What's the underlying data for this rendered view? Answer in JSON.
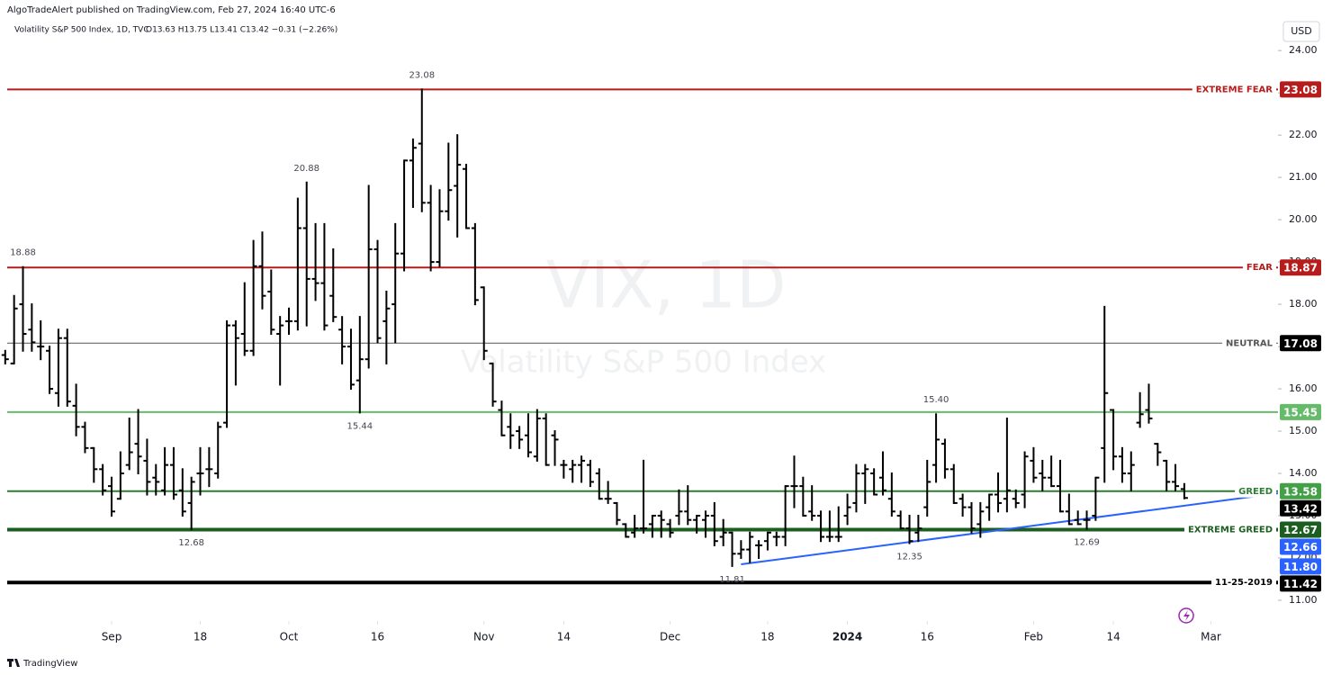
{
  "header": {
    "publisher": "AlgoTradeAlert published on TradingView.com, Feb 27, 2024 16:40 UTC-6",
    "symbol": "Volatility S&P 500 Index, 1D, TVC",
    "ohlc": "O13.63 H13.75 L13.41 C13.42 −0.31 (−2.26%)",
    "currency": "USD"
  },
  "watermark": {
    "symbol": "VIX, 1D",
    "name": "Volatility S&P 500 Index"
  },
  "footer": "TradingView",
  "chart_data": {
    "type": "ohlc",
    "color": "#000000",
    "xlim": [
      -0.59,
      143.57
    ],
    "xticks": [
      {
        "value": 12,
        "label": "Sep"
      },
      {
        "value": 22,
        "label": "18"
      },
      {
        "value": 32,
        "label": "Oct"
      },
      {
        "value": 42,
        "label": "16"
      },
      {
        "value": 54,
        "label": "Nov"
      },
      {
        "value": 63,
        "label": "14"
      },
      {
        "value": 75,
        "label": "Dec"
      },
      {
        "value": 86,
        "label": "18"
      },
      {
        "value": 95,
        "label": "2024"
      },
      {
        "value": 104,
        "label": "16"
      },
      {
        "value": 116,
        "label": "Feb"
      },
      {
        "value": 125,
        "label": "14"
      },
      {
        "value": 136,
        "label": "Mar"
      }
    ],
    "ylim": [
      10.51,
      24.77
    ],
    "yticks": [
      {
        "value": 11,
        "label": "11.00"
      },
      {
        "value": 12,
        "label": "12.00"
      },
      {
        "value": 13,
        "label": "13.00"
      },
      {
        "value": 14,
        "label": "14.00"
      },
      {
        "value": 15,
        "label": "15.00"
      },
      {
        "value": 16,
        "label": "16.00"
      },
      {
        "value": 17,
        "label": "17.00"
      },
      {
        "value": 18,
        "label": "18.00"
      },
      {
        "value": 19,
        "label": "19.00"
      },
      {
        "value": 20,
        "label": "20.00"
      },
      {
        "value": 21,
        "label": "21.00"
      },
      {
        "value": 22,
        "label": "22.00"
      },
      {
        "value": 23,
        "label": "23.00"
      },
      {
        "value": 24,
        "label": "24.00"
      }
    ],
    "grid": false,
    "open": [
      16.8,
      16.6,
      18.0,
      17.4,
      17.0,
      16.9,
      15.9,
      17.2,
      15.6,
      15.1,
      14.6,
      14.1,
      13.7,
      13.4,
      14.2,
      14.7,
      14.3,
      13.9,
      13.6,
      14.2,
      13.6,
      13.3,
      14.0,
      14.1,
      14.0,
      15.2,
      17.5,
      17.3,
      16.9,
      18.9,
      18.3,
      17.3,
      17.6,
      17.6,
      19.8,
      18.6,
      18.5,
      18.2,
      17.4,
      17.0,
      16.2,
      16.7,
      19.3,
      17.6,
      18.0,
      19.2,
      21.4,
      21.8,
      20.4,
      19.0,
      20.2,
      20.8,
      21.2,
      19.8,
      18.4,
      16.6,
      15.5,
      15.1,
      15.0,
      14.9,
      14.4,
      15.3,
      14.9,
      14.2,
      14.1,
      14.2,
      14.2,
      14.0,
      13.4,
      13.3,
      12.8,
      12.6,
      12.7,
      12.8,
      13.0,
      12.8,
      13.0,
      13.1,
      12.9,
      12.9,
      13.0,
      12.5,
      12.6,
      12.1,
      12.2,
      12.3,
      12.4,
      12.5,
      12.5,
      13.7,
      13.7,
      13.1,
      13.0,
      12.5,
      12.5,
      13.0,
      13.3,
      14.0,
      14.0,
      13.9,
      13.4,
      13.0,
      12.7,
      12.6,
      13.2,
      14.2,
      14.7,
      14.1,
      13.4,
      13.2,
      12.8,
      13.2,
      13.5,
      13.4,
      13.4,
      13.5,
      14.3,
      14.0,
      13.9,
      13.7,
      13.1,
      12.9,
      12.9,
      13.0,
      14.6,
      15.5,
      14.4,
      14.0,
      15.2,
      15.5,
      14.7,
      14.3,
      13.8,
      13.63
    ],
    "high": [
      16.9,
      18.2,
      18.88,
      18.0,
      17.6,
      17.0,
      17.4,
      17.4,
      16.1,
      15.2,
      14.6,
      14.2,
      13.9,
      14.5,
      15.3,
      15.5,
      14.8,
      14.2,
      14.6,
      14.6,
      14.1,
      13.9,
      14.6,
      14.6,
      15.2,
      17.6,
      17.6,
      18.5,
      19.5,
      19.7,
      18.8,
      17.7,
      17.9,
      20.5,
      20.88,
      19.9,
      19.9,
      19.3,
      17.7,
      17.4,
      17.7,
      20.8,
      19.5,
      18.3,
      19.9,
      21.4,
      21.9,
      23.08,
      20.8,
      20.7,
      21.8,
      22.0,
      21.3,
      19.9,
      18.4,
      16.6,
      15.7,
      15.4,
      15.1,
      15.4,
      15.5,
      15.4,
      15.0,
      14.3,
      14.3,
      14.4,
      14.3,
      14.1,
      13.8,
      13.3,
      12.8,
      13.0,
      14.3,
      13.0,
      13.1,
      12.9,
      13.6,
      13.7,
      13.0,
      13.1,
      13.3,
      12.9,
      12.6,
      12.4,
      12.6,
      12.4,
      12.6,
      12.6,
      13.7,
      14.4,
      13.9,
      13.7,
      13.1,
      13.1,
      13.2,
      13.5,
      14.2,
      14.2,
      14.1,
      14.5,
      14.0,
      13.1,
      13.0,
      13.0,
      14.3,
      15.4,
      14.8,
      14.2,
      13.5,
      13.3,
      13.3,
      13.5,
      14.0,
      15.3,
      13.6,
      14.5,
      14.6,
      14.3,
      14.4,
      14.3,
      13.5,
      13.1,
      13.1,
      13.9,
      17.94,
      15.5,
      14.6,
      14.5,
      15.9,
      16.1,
      14.7,
      14.3,
      14.2,
      13.75
    ],
    "low": [
      16.6,
      16.6,
      16.9,
      16.9,
      16.7,
      15.9,
      15.6,
      15.6,
      14.9,
      14.5,
      13.8,
      13.5,
      13.0,
      13.4,
      14.1,
      14.0,
      13.5,
      13.5,
      13.5,
      13.4,
      13.0,
      12.68,
      13.5,
      13.7,
      13.9,
      15.1,
      16.1,
      16.8,
      16.8,
      17.9,
      17.3,
      16.1,
      17.3,
      17.4,
      17.5,
      18.1,
      17.4,
      17.6,
      16.6,
      16.0,
      15.44,
      16.5,
      17.1,
      16.6,
      17.1,
      18.8,
      20.3,
      20.2,
      18.8,
      18.9,
      20.0,
      19.6,
      19.8,
      18.0,
      16.7,
      15.6,
      14.9,
      14.6,
      14.6,
      14.4,
      14.3,
      14.2,
      14.2,
      13.9,
      13.8,
      13.8,
      13.7,
      13.4,
      13.3,
      12.8,
      12.5,
      12.5,
      12.6,
      12.5,
      12.5,
      12.5,
      12.8,
      12.8,
      12.6,
      12.5,
      12.3,
      12.3,
      11.81,
      12.0,
      11.9,
      12.0,
      12.2,
      12.3,
      12.3,
      13.2,
      13.0,
      12.9,
      12.4,
      12.4,
      12.4,
      12.8,
      13.1,
      13.3,
      13.5,
      13.5,
      13.0,
      12.7,
      12.35,
      12.4,
      13.0,
      13.8,
      13.9,
      13.3,
      13.0,
      12.6,
      12.5,
      12.9,
      13.1,
      13.1,
      13.2,
      13.2,
      13.8,
      13.6,
      13.7,
      13.1,
      12.8,
      12.8,
      12.69,
      12.9,
      13.8,
      14.1,
      13.8,
      13.6,
      15.1,
      15.2,
      14.2,
      13.6,
      13.6,
      13.41
    ],
    "close": [
      16.7,
      17.9,
      17.3,
      17.1,
      17.0,
      16.0,
      17.2,
      15.7,
      15.1,
      14.6,
      14.1,
      13.6,
      13.1,
      14.0,
      14.5,
      14.4,
      13.8,
      13.8,
      14.2,
      13.5,
      13.1,
      13.8,
      14.0,
      14.1,
      15.1,
      17.5,
      17.2,
      16.9,
      18.9,
      18.2,
      17.4,
      17.5,
      17.6,
      19.8,
      18.6,
      18.5,
      17.5,
      17.7,
      17.0,
      16.1,
      16.7,
      19.3,
      17.2,
      17.9,
      19.2,
      21.4,
      21.7,
      20.4,
      19.0,
      20.2,
      20.7,
      21.3,
      19.8,
      18.1,
      16.9,
      15.7,
      14.9,
      14.9,
      14.8,
      14.5,
      15.3,
      14.2,
      14.8,
      14.2,
      14.2,
      14.3,
      13.8,
      13.4,
      13.4,
      12.9,
      12.5,
      12.7,
      12.7,
      13.0,
      12.9,
      12.6,
      13.1,
      12.9,
      13.0,
      13.0,
      12.4,
      12.6,
      12.1,
      12.2,
      12.5,
      12.3,
      12.6,
      12.5,
      13.7,
      13.7,
      13.0,
      13.0,
      12.5,
      12.5,
      12.5,
      13.2,
      14.0,
      14.1,
      13.5,
      13.6,
      13.1,
      12.7,
      12.4,
      12.7,
      13.8,
      14.8,
      14.1,
      13.3,
      13.2,
      12.7,
      13.1,
      13.5,
      13.3,
      13.6,
      13.3,
      14.4,
      13.9,
      13.9,
      13.7,
      13.1,
      12.8,
      12.8,
      12.9,
      13.9,
      15.9,
      14.4,
      14.0,
      14.2,
      15.4,
      15.3,
      14.5,
      13.8,
      13.7,
      13.42
    ],
    "annotations": [
      {
        "x": 2,
        "value": 18.88,
        "label": "18.88",
        "position": "above"
      },
      {
        "x": 34,
        "value": 20.88,
        "label": "20.88",
        "position": "above"
      },
      {
        "x": 47,
        "value": 23.08,
        "label": "23.08",
        "position": "above"
      },
      {
        "x": 105,
        "value": 15.4,
        "label": "15.40",
        "position": "above"
      },
      {
        "x": 40,
        "value": 15.44,
        "label": "15.44",
        "position": "below"
      },
      {
        "x": 21,
        "value": 12.68,
        "label": "12.68",
        "position": "below"
      },
      {
        "x": 82,
        "value": 11.81,
        "label": "11.81",
        "position": "below"
      },
      {
        "x": 102,
        "value": 12.35,
        "label": "12.35",
        "position": "below"
      },
      {
        "x": 122,
        "value": 12.69,
        "label": "12.69",
        "position": "below"
      }
    ],
    "levels": [
      {
        "name": "EXTREME FEAR",
        "value": 23.08,
        "color": "#b71c1c",
        "style": "medium"
      },
      {
        "name": "FEAR",
        "value": 18.87,
        "color": "#b71c1c",
        "style": "medium"
      },
      {
        "name": "NEUTRAL",
        "value": 17.08,
        "color": "#555555",
        "style": "thin",
        "box": "#000000"
      },
      {
        "value": 15.45,
        "color": "#66bb6a",
        "style": "medium"
      },
      {
        "name": "GREED",
        "value": 13.58,
        "color": "#2e7d32",
        "style": "medium",
        "box": "#43a047"
      },
      {
        "name": "EXTREME GREED",
        "value": 12.67,
        "color": "#1b5e20",
        "style": "thick"
      },
      {
        "name": "11-25-2019",
        "value": 11.42,
        "color": "#000000",
        "style": "thick"
      }
    ],
    "trendline": {
      "color": "#2962ff",
      "start": {
        "x": 83,
        "y": 11.85
      },
      "end": {
        "x": 143.57,
        "y": 13.53
      }
    },
    "markers": [
      {
        "value": 12.66,
        "color": "#2962ff"
      },
      {
        "value": 11.8,
        "label": "11.80",
        "color": "#2962ff"
      }
    ],
    "last_color": "#000000"
  }
}
